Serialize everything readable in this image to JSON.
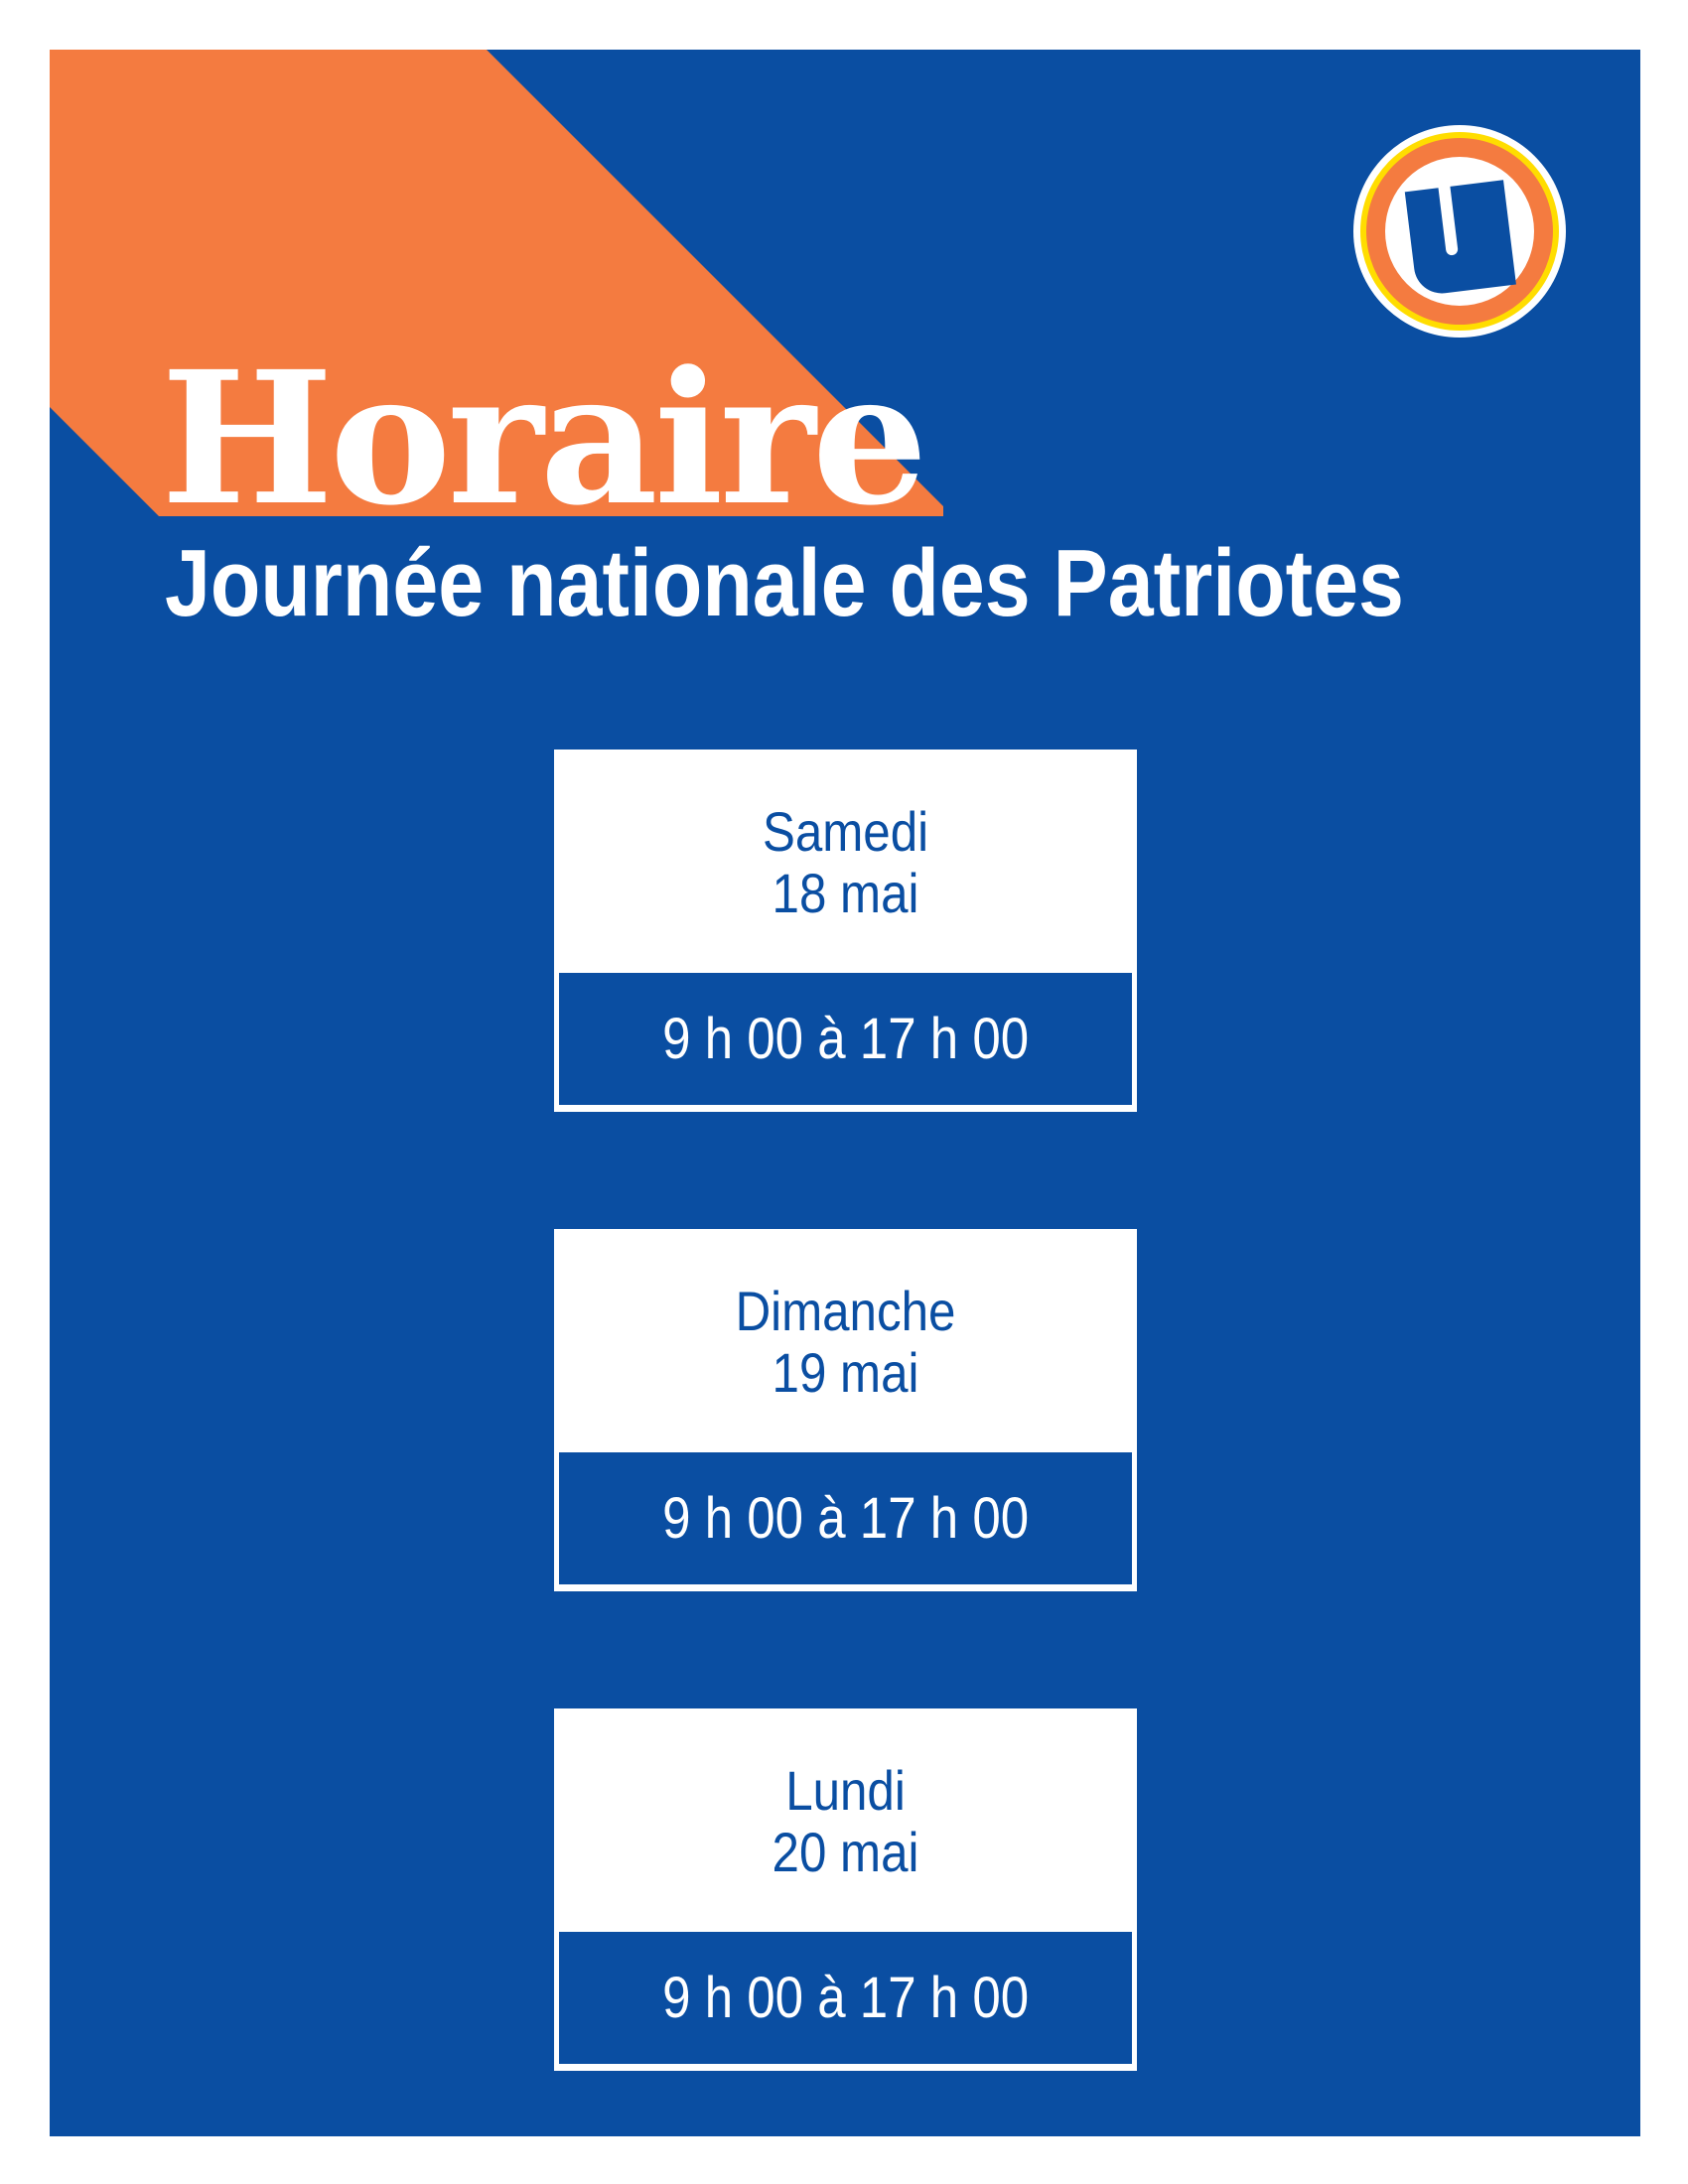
{
  "header": {
    "title": "Horaire",
    "subtitle": "Journée nationale des Patriotes",
    "logo_letter": "U"
  },
  "colors": {
    "background": "#0a4ea2",
    "accent": "#f47b40",
    "logo_ring_yellow": "#ffdd00",
    "text_on_blue": "#ffffff"
  },
  "schedule": [
    {
      "day": "Samedi",
      "date": "18 mai",
      "hours": "9 h 00 à 17 h 00"
    },
    {
      "day": "Dimanche",
      "date": "19 mai",
      "hours": "9 h 00 à 17 h 00"
    },
    {
      "day": "Lundi",
      "date": "20 mai",
      "hours": "9 h 00 à 17 h 00"
    }
  ]
}
